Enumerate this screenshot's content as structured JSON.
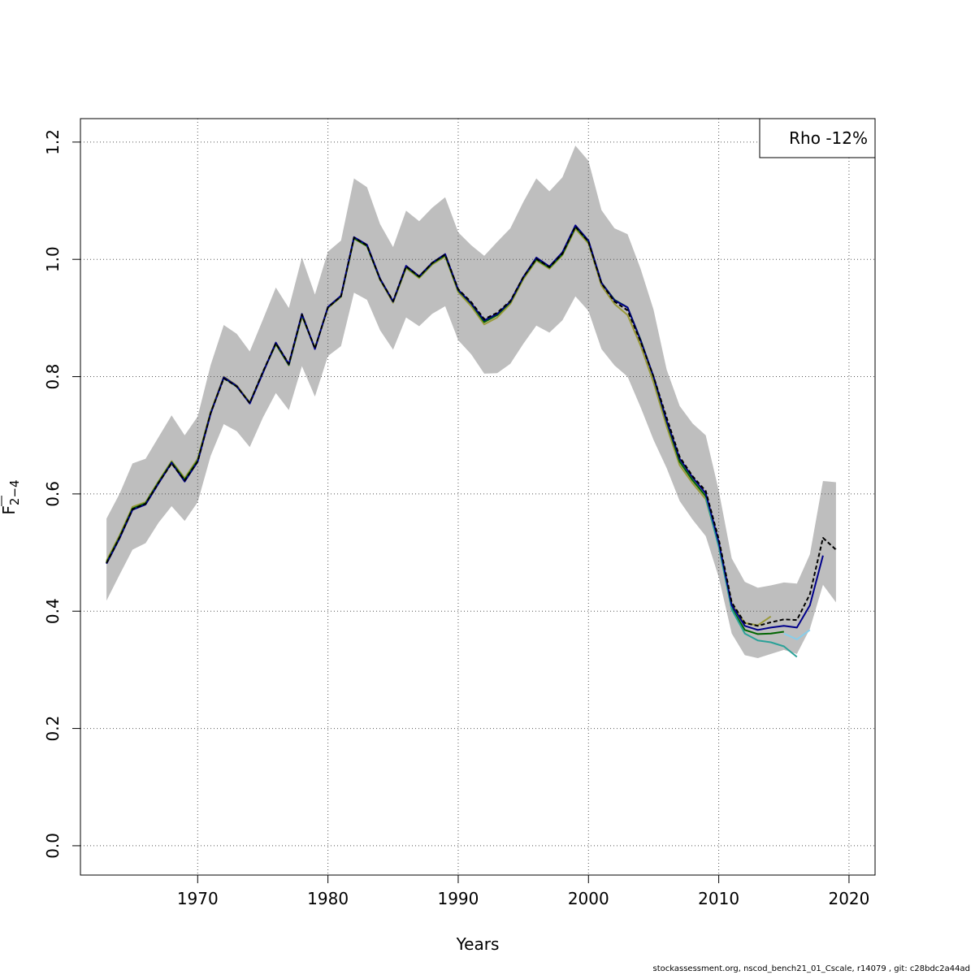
{
  "chart_data": {
    "type": "line",
    "xlabel": "Years",
    "ylabel": "F",
    "ylabel_subscript": "2−4",
    "xlim": [
      1961,
      2022
    ],
    "ylim": [
      -0.05,
      1.24
    ],
    "x_ticks": [
      1970,
      1980,
      1990,
      2000,
      2010,
      2020
    ],
    "y_ticks": [
      0.0,
      0.2,
      0.4,
      0.6,
      0.8,
      1.0,
      1.2
    ],
    "x_tick_labels": [
      "1970",
      "1980",
      "1990",
      "2000",
      "2010",
      "2020"
    ],
    "y_tick_labels": [
      "0.0",
      "0.2",
      "0.4",
      "0.6",
      "0.8",
      "1.0",
      "1.2"
    ],
    "grid": true,
    "legend_text": "Rho -12%",
    "legend_position": "top-right",
    "confidence_band": {
      "color": "#bebebe",
      "years": [
        1963,
        1964,
        1965,
        1966,
        1967,
        1968,
        1969,
        1970,
        1971,
        1972,
        1973,
        1974,
        1975,
        1976,
        1977,
        1978,
        1979,
        1980,
        1981,
        1982,
        1983,
        1984,
        1985,
        1986,
        1987,
        1988,
        1989,
        1990,
        1991,
        1992,
        1993,
        1994,
        1995,
        1996,
        1997,
        1998,
        1999,
        2000,
        2001,
        2002,
        2003,
        2004,
        2005,
        2006,
        2007,
        2008,
        2009,
        2010,
        2011,
        2012,
        2013,
        2014,
        2015,
        2016,
        2017,
        2018,
        2019
      ],
      "upper": [
        0.558,
        0.6,
        0.652,
        0.66,
        0.697,
        0.734,
        0.7,
        0.732,
        0.82,
        0.888,
        0.873,
        0.843,
        0.897,
        0.952,
        0.917,
        1.003,
        0.94,
        1.013,
        1.032,
        1.138,
        1.123,
        1.06,
        1.021,
        1.083,
        1.065,
        1.088,
        1.106,
        1.046,
        1.024,
        1.006,
        1.03,
        1.053,
        1.098,
        1.138,
        1.116,
        1.14,
        1.194,
        1.168,
        1.084,
        1.053,
        1.043,
        0.984,
        0.914,
        0.812,
        0.75,
        0.72,
        0.7,
        0.606,
        0.49,
        0.45,
        0.44,
        0.444,
        0.449,
        0.447,
        0.497,
        0.622,
        0.62
      ],
      "lower": [
        0.418,
        0.462,
        0.505,
        0.516,
        0.551,
        0.579,
        0.554,
        0.586,
        0.665,
        0.719,
        0.707,
        0.68,
        0.73,
        0.772,
        0.743,
        0.818,
        0.766,
        0.835,
        0.852,
        0.943,
        0.931,
        0.879,
        0.846,
        0.901,
        0.886,
        0.907,
        0.92,
        0.862,
        0.838,
        0.805,
        0.806,
        0.822,
        0.856,
        0.887,
        0.875,
        0.896,
        0.937,
        0.912,
        0.847,
        0.819,
        0.8,
        0.748,
        0.692,
        0.644,
        0.588,
        0.556,
        0.528,
        0.458,
        0.362,
        0.325,
        0.32,
        0.327,
        0.334,
        0.327,
        0.37,
        0.445,
        0.415
      ]
    },
    "series": [
      {
        "color": "#000000",
        "dashed": true,
        "x": [
          1963,
          1964,
          1965,
          1966,
          1967,
          1968,
          1969,
          1970,
          1971,
          1972,
          1973,
          1974,
          1975,
          1976,
          1977,
          1978,
          1979,
          1980,
          1981,
          1982,
          1983,
          1984,
          1985,
          1986,
          1987,
          1988,
          1989,
          1990,
          1991,
          1992,
          1993,
          1994,
          1995,
          1996,
          1997,
          1998,
          1999,
          2000,
          2001,
          2002,
          2003,
          2004,
          2005,
          2006,
          2007,
          2008,
          2009,
          2010,
          2011,
          2012,
          2013,
          2014,
          2015,
          2016,
          2017,
          2018,
          2019
        ],
        "values": [
          0.482,
          0.525,
          0.574,
          0.583,
          0.619,
          0.652,
          0.623,
          0.655,
          0.738,
          0.797,
          0.783,
          0.755,
          0.808,
          0.857,
          0.822,
          0.906,
          0.848,
          0.918,
          0.937,
          1.037,
          1.024,
          0.966,
          0.929,
          0.988,
          0.971,
          0.994,
          1.008,
          0.949,
          0.927,
          0.898,
          0.909,
          0.929,
          0.97,
          1.001,
          0.987,
          1.01,
          1.056,
          1.03,
          0.959,
          0.928,
          0.913,
          0.86,
          0.8,
          0.73,
          0.663,
          0.63,
          0.605,
          0.523,
          0.415,
          0.38,
          0.375,
          0.381,
          0.386,
          0.385,
          0.429,
          0.525,
          0.505
        ]
      },
      {
        "color": "#00008b",
        "dashed": false,
        "x": [
          1963,
          1964,
          1965,
          1966,
          1967,
          1968,
          1969,
          1970,
          1971,
          1972,
          1973,
          1974,
          1975,
          1976,
          1977,
          1978,
          1979,
          1980,
          1981,
          1982,
          1983,
          1984,
          1985,
          1986,
          1987,
          1988,
          1989,
          1990,
          1991,
          1992,
          1993,
          1994,
          1995,
          1996,
          1997,
          1998,
          1999,
          2000,
          2001,
          2002,
          2003,
          2004,
          2005,
          2006,
          2007,
          2008,
          2009,
          2010,
          2011,
          2012,
          2013,
          2014,
          2015,
          2016,
          2017,
          2018
        ],
        "values": [
          0.481,
          0.524,
          0.573,
          0.582,
          0.618,
          0.653,
          0.621,
          0.655,
          0.737,
          0.799,
          0.784,
          0.754,
          0.806,
          0.858,
          0.821,
          0.907,
          0.847,
          0.919,
          0.938,
          1.038,
          1.025,
          0.967,
          0.928,
          0.989,
          0.971,
          0.994,
          1.009,
          0.948,
          0.925,
          0.896,
          0.907,
          0.928,
          0.97,
          1.003,
          0.988,
          1.012,
          1.058,
          1.032,
          0.96,
          0.93,
          0.918,
          0.862,
          0.8,
          0.725,
          0.66,
          0.628,
          0.601,
          0.518,
          0.41,
          0.375,
          0.368,
          0.372,
          0.375,
          0.372,
          0.41,
          0.495
        ]
      },
      {
        "color": "#87ceeb",
        "dashed": false,
        "x": [
          2015,
          2016,
          2017
        ],
        "values": [
          0.362,
          0.352,
          0.368
        ]
      },
      {
        "color": "#2aa198",
        "dashed": false,
        "x": [
          2009,
          2010,
          2011,
          2012,
          2013,
          2014,
          2015,
          2016
        ],
        "values": [
          0.594,
          0.51,
          0.403,
          0.362,
          0.35,
          0.347,
          0.34,
          0.322
        ]
      },
      {
        "color": "#006400",
        "dashed": false,
        "x": [
          1963,
          1964,
          1965,
          1966,
          1967,
          1968,
          1969,
          1970,
          1971,
          1972,
          1973,
          1974,
          1975,
          1976,
          1977,
          1978,
          1979,
          1980,
          1981,
          1982,
          1983,
          1984,
          1985,
          1986,
          1987,
          1988,
          1989,
          1990,
          1991,
          1992,
          1993,
          1994,
          1995,
          1996,
          1997,
          1998,
          1999,
          2000,
          2001,
          2002,
          2003,
          2004,
          2005,
          2006,
          2007,
          2008,
          2009,
          2010,
          2011,
          2012,
          2013,
          2014,
          2015
        ],
        "values": [
          0.483,
          0.526,
          0.575,
          0.584,
          0.62,
          0.654,
          0.624,
          0.657,
          0.738,
          0.798,
          0.783,
          0.755,
          0.807,
          0.856,
          0.82,
          0.905,
          0.848,
          0.918,
          0.937,
          1.036,
          1.023,
          0.966,
          0.928,
          0.987,
          0.97,
          0.993,
          1.007,
          0.947,
          0.924,
          0.893,
          0.905,
          0.927,
          0.969,
          1.0,
          0.986,
          1.009,
          1.055,
          1.03,
          0.96,
          0.931,
          0.918,
          0.863,
          0.799,
          0.723,
          0.655,
          0.623,
          0.596,
          0.513,
          0.405,
          0.368,
          0.361,
          0.362,
          0.365
        ]
      },
      {
        "color": "#9a9a3a",
        "dashed": false,
        "x": [
          1963,
          1964,
          1965,
          1966,
          1967,
          1968,
          1969,
          1970,
          1971,
          1972,
          1973,
          1974,
          1975,
          1976,
          1977,
          1978,
          1979,
          1980,
          1981,
          1982,
          1983,
          1984,
          1985,
          1986,
          1987,
          1988,
          1989,
          1990,
          1991,
          1992,
          1993,
          1994,
          1995,
          1996,
          1997,
          1998,
          1999,
          2000,
          2001,
          2002,
          2003,
          2004,
          2005,
          2006,
          2007,
          2008,
          2009,
          2010,
          2011,
          2012,
          2013,
          2014
        ],
        "values": [
          0.486,
          0.529,
          0.578,
          0.586,
          0.622,
          0.656,
          0.627,
          0.66,
          0.74,
          0.8,
          0.785,
          0.756,
          0.808,
          0.855,
          0.819,
          0.903,
          0.849,
          0.917,
          0.936,
          1.035,
          1.022,
          0.965,
          0.926,
          0.985,
          0.968,
          0.991,
          1.005,
          0.944,
          0.92,
          0.889,
          0.901,
          0.924,
          0.966,
          0.998,
          0.984,
          1.007,
          1.052,
          1.027,
          0.955,
          0.924,
          0.905,
          0.853,
          0.79,
          0.715,
          0.649,
          0.618,
          0.591,
          0.512,
          0.412,
          0.38,
          0.376,
          0.391
        ]
      }
    ]
  },
  "footer": "stockassessment.org, nscod_bench21_01_Cscale, r14079 , git: c28bdc2a44ad"
}
